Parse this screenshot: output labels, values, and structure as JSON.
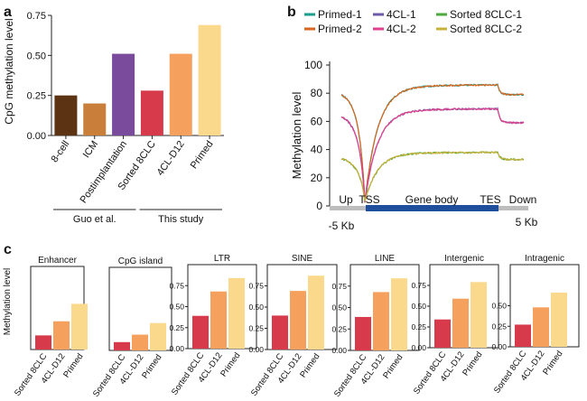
{
  "panel_labels": {
    "a": "a",
    "b": "b",
    "c": "c"
  },
  "chart_data": [
    {
      "id": "a",
      "type": "bar",
      "ylabel": "CpG methylation level",
      "ylim": [
        0,
        0.75
      ],
      "yticks": [
        "0.00",
        "0.25",
        "0.50",
        "0.75"
      ],
      "categories": [
        "8-cell",
        "ICM",
        "Postimplantation",
        "Sorted 8CLC",
        "4CL-D12",
        "Primed"
      ],
      "values": [
        0.25,
        0.2,
        0.51,
        0.28,
        0.51,
        0.69
      ],
      "colors": [
        "#5c3413",
        "#c97f3a",
        "#7a4a9c",
        "#d63a4b",
        "#f5a05c",
        "#fbd98c"
      ],
      "groups": [
        {
          "label": "Guo et al.",
          "span": [
            0,
            2
          ]
        },
        {
          "label": "This study",
          "span": [
            3,
            5
          ]
        }
      ]
    },
    {
      "id": "b",
      "type": "line",
      "ylabel": "Methylation level",
      "ylim": [
        0,
        100
      ],
      "yticks": [
        "0",
        "20",
        "40",
        "60",
        "80",
        "100"
      ],
      "region_labels": [
        "Up",
        "TSS",
        "Gene body",
        "TES",
        "Down"
      ],
      "x_ends": [
        "-5 Kb",
        "5 Kb"
      ],
      "series": [
        {
          "name": "Primed-1",
          "color": "#1a9e8c",
          "up": 80,
          "body": 86,
          "down": 79,
          "pair": 0
        },
        {
          "name": "Primed-2",
          "color": "#d9641e",
          "up": 80,
          "body": 86,
          "down": 79,
          "pair": 0
        },
        {
          "name": "4CL-1",
          "color": "#6e5aa8",
          "up": 64,
          "body": 69,
          "down": 59,
          "pair": 1
        },
        {
          "name": "4CL-2",
          "color": "#e0408c",
          "up": 64,
          "body": 69,
          "down": 59,
          "pair": 1
        },
        {
          "name": "Sorted 8CLC-1",
          "color": "#4aa83c",
          "up": 34,
          "body": 38,
          "down": 33,
          "pair": 2
        },
        {
          "name": "Sorted 8CLC-2",
          "color": "#c9b03a",
          "up": 34,
          "body": 38,
          "down": 33,
          "pair": 2
        }
      ]
    },
    {
      "id": "c",
      "type": "bar",
      "ylabel": "Methylation level",
      "ylim": [
        0,
        1.0
      ],
      "categories": [
        "Sorted 8CLC",
        "4CL-D12",
        "Primed"
      ],
      "colors": [
        "#d63a4b",
        "#f5a05c",
        "#fbd98c"
      ],
      "panels": [
        {
          "title": "Enhancer",
          "values": [
            0.17,
            0.34,
            0.55
          ],
          "yticks": []
        },
        {
          "title": "CpG island",
          "values": [
            0.1,
            0.19,
            0.33
          ],
          "yticks": []
        },
        {
          "title": "LTR",
          "values": [
            0.39,
            0.68,
            0.84
          ],
          "yticks": [
            "0.00",
            "0.25",
            "0.50",
            "0.75"
          ]
        },
        {
          "title": "SINE",
          "values": [
            0.4,
            0.69,
            0.87
          ],
          "yticks": [
            "0.00",
            "0.25",
            "0.50",
            "0.75"
          ]
        },
        {
          "title": "LINE",
          "values": [
            0.39,
            0.68,
            0.84
          ],
          "yticks": [
            "0.00",
            "0.25",
            "0.50",
            "0.75"
          ]
        },
        {
          "title": "Intergenic",
          "values": [
            0.34,
            0.59,
            0.79
          ],
          "yticks": [
            "0.00",
            "0.25",
            "0.50",
            "0.75"
          ]
        },
        {
          "title": "Intragenic",
          "values": [
            0.27,
            0.48,
            0.66
          ],
          "yticks": [
            "0.00",
            "0.25",
            "0.50"
          ]
        }
      ]
    }
  ]
}
